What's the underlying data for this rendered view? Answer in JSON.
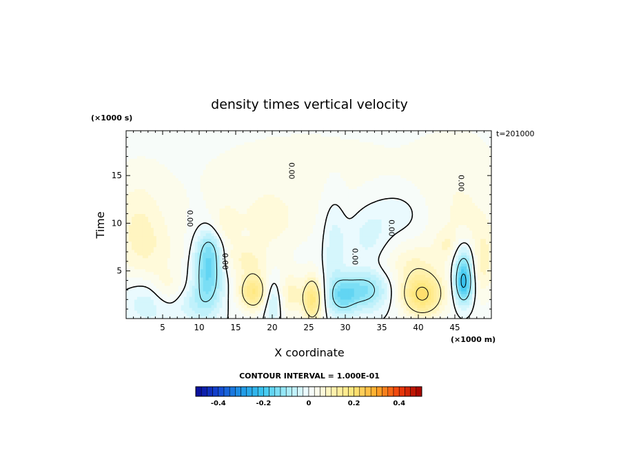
{
  "chart_data": {
    "type": "heatmap",
    "title": "density times vertical velocity",
    "xlabel": "X coordinate",
    "ylabel": "Time",
    "x_units": "(×1000 m)",
    "y_units": "(×1000 s)",
    "time_stamp": "t=201000",
    "xlim": [
      0,
      50
    ],
    "ylim": [
      0,
      19.7
    ],
    "x_ticks": [
      5,
      10,
      15,
      20,
      25,
      30,
      35,
      40,
      45
    ],
    "y_ticks": [
      5,
      10,
      15
    ],
    "contour_interval_label": "CONTOUR INTERVAL = 1.000E-01",
    "contour_interval": 0.1,
    "zero_contour_label": "0.00",
    "colorbar": {
      "range": [
        -0.5,
        0.5
      ],
      "ticks": [
        -0.4,
        -0.2,
        0,
        0.2,
        0.4
      ],
      "tick_labels": [
        "-0.4",
        "-0.2",
        "0",
        "0.2",
        "0.4"
      ],
      "n_segments": 40,
      "stops": [
        {
          "v": -0.5,
          "c": "#0a0a96"
        },
        {
          "v": -0.4,
          "c": "#1446d2"
        },
        {
          "v": -0.3,
          "c": "#1e96e6"
        },
        {
          "v": -0.2,
          "c": "#3cc8f0"
        },
        {
          "v": -0.1,
          "c": "#a0ebf8"
        },
        {
          "v": 0.0,
          "c": "#f4fcff"
        },
        {
          "v": 0.05,
          "c": "#fffce6"
        },
        {
          "v": 0.1,
          "c": "#fff3b4"
        },
        {
          "v": 0.2,
          "c": "#ffe678"
        },
        {
          "v": 0.3,
          "c": "#ffaa28"
        },
        {
          "v": 0.4,
          "c": "#f03c0a"
        },
        {
          "v": 0.5,
          "c": "#a00000"
        }
      ]
    },
    "features": [
      {
        "x": 24.8,
        "t": 14.5,
        "sx": 24,
        "sy": 8,
        "v": 0.03
      },
      {
        "x": 46.0,
        "t": 10.0,
        "sx": 4,
        "sy": 6,
        "v": 0.035
      },
      {
        "x": 1.5,
        "t": 10.0,
        "sx": 2.5,
        "sy": 3.5,
        "v": 0.05
      },
      {
        "x": 3.5,
        "t": 6.5,
        "sx": 3.0,
        "sy": 3.0,
        "v": 0.04
      },
      {
        "x": 3.2,
        "t": 2.0,
        "sx": 2.5,
        "sy": 1.8,
        "v": -0.06
      },
      {
        "x": 5.5,
        "t": 3.2,
        "sx": 1.5,
        "sy": 1.3,
        "v": 0.05
      },
      {
        "x": 9.0,
        "t": 1.5,
        "sx": 1.5,
        "sy": 1.2,
        "v": -0.04
      },
      {
        "x": 11.2,
        "t": 4.5,
        "sx": 1.4,
        "sy": 2.6,
        "v": -0.16
      },
      {
        "x": 11.5,
        "t": 7.5,
        "sx": 1.2,
        "sy": 1.5,
        "v": -0.07
      },
      {
        "x": 13.5,
        "t": 9.8,
        "sx": 1.4,
        "sy": 1.6,
        "v": 0.05
      },
      {
        "x": 17.5,
        "t": 2.8,
        "sx": 1.4,
        "sy": 1.3,
        "v": 0.17
      },
      {
        "x": 16.5,
        "t": 6.2,
        "sx": 2.2,
        "sy": 1.3,
        "v": 0.06
      },
      {
        "x": 19.5,
        "t": 10.5,
        "sx": 2.5,
        "sy": 2.0,
        "v": 0.045
      },
      {
        "x": 20.0,
        "t": 2.0,
        "sx": 1.0,
        "sy": 1.6,
        "v": -0.08
      },
      {
        "x": 22.5,
        "t": 2.5,
        "sx": 1.2,
        "sy": 1.6,
        "v": 0.08
      },
      {
        "x": 25.5,
        "t": 2.0,
        "sx": 0.9,
        "sy": 1.6,
        "v": 0.18
      },
      {
        "x": 28.5,
        "t": 7.5,
        "sx": 1.1,
        "sy": 3.5,
        "v": -0.06
      },
      {
        "x": 29.5,
        "t": 2.3,
        "sx": 1.3,
        "sy": 1.3,
        "v": -0.11
      },
      {
        "x": 32.5,
        "t": 3.0,
        "sx": 2.2,
        "sy": 1.4,
        "v": -0.14
      },
      {
        "x": 33.0,
        "t": 8.5,
        "sx": 2.0,
        "sy": 2.0,
        "v": -0.05
      },
      {
        "x": 37.0,
        "t": 11.0,
        "sx": 3.0,
        "sy": 1.8,
        "v": -0.04
      },
      {
        "x": 40.5,
        "t": 2.5,
        "sx": 1.9,
        "sy": 1.5,
        "v": 0.2
      },
      {
        "x": 39.0,
        "t": 5.8,
        "sx": 2.5,
        "sy": 1.5,
        "v": 0.05
      },
      {
        "x": 46.2,
        "t": 3.8,
        "sx": 0.9,
        "sy": 1.6,
        "v": -0.24
      },
      {
        "x": 46.3,
        "t": 6.5,
        "sx": 1.1,
        "sy": 1.4,
        "v": -0.08
      },
      {
        "x": 48.8,
        "t": 6.0,
        "sx": 1.2,
        "sy": 2.5,
        "v": 0.06
      },
      {
        "x": 44.0,
        "t": 7.8,
        "sx": 1.0,
        "sy": 1.0,
        "v": 0.04
      }
    ]
  }
}
